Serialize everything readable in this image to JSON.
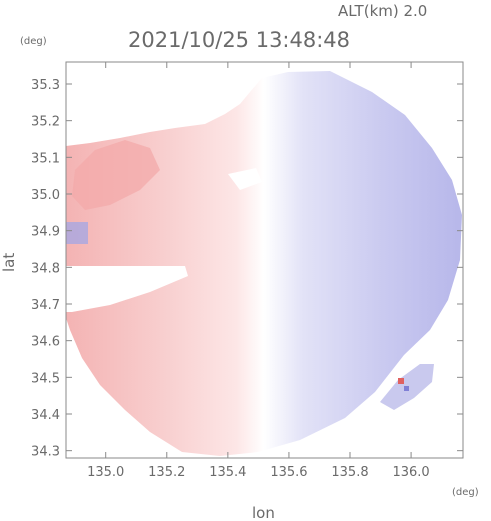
{
  "chart_data": {
    "type": "heatmap",
    "title": "2021/10/25 13:48:48",
    "altitude_label": "ALT(km) 2.0",
    "xlabel": "lon",
    "ylabel": "lat",
    "x_unit": "(deg)",
    "y_unit": "(deg)",
    "xlim": [
      134.87,
      136.17
    ],
    "ylim": [
      34.28,
      35.36
    ],
    "x_ticks": [
      "135.0",
      "135.2",
      "135.4",
      "135.6",
      "135.8",
      "136.0"
    ],
    "y_ticks": [
      "34.3",
      "34.4",
      "34.5",
      "34.6",
      "34.7",
      "34.8",
      "34.9",
      "35.0",
      "35.1",
      "35.2",
      "35.3"
    ],
    "grid": false,
    "colors": {
      "positive_light": "#fde4e4",
      "positive_mid": "#f7bdbd",
      "positive_strong": "#e98d8d",
      "negative_light": "#e3e3f7",
      "negative_mid": "#c7c7ef",
      "negative_strong": "#9f9fe0",
      "axis": "#888888"
    }
  }
}
